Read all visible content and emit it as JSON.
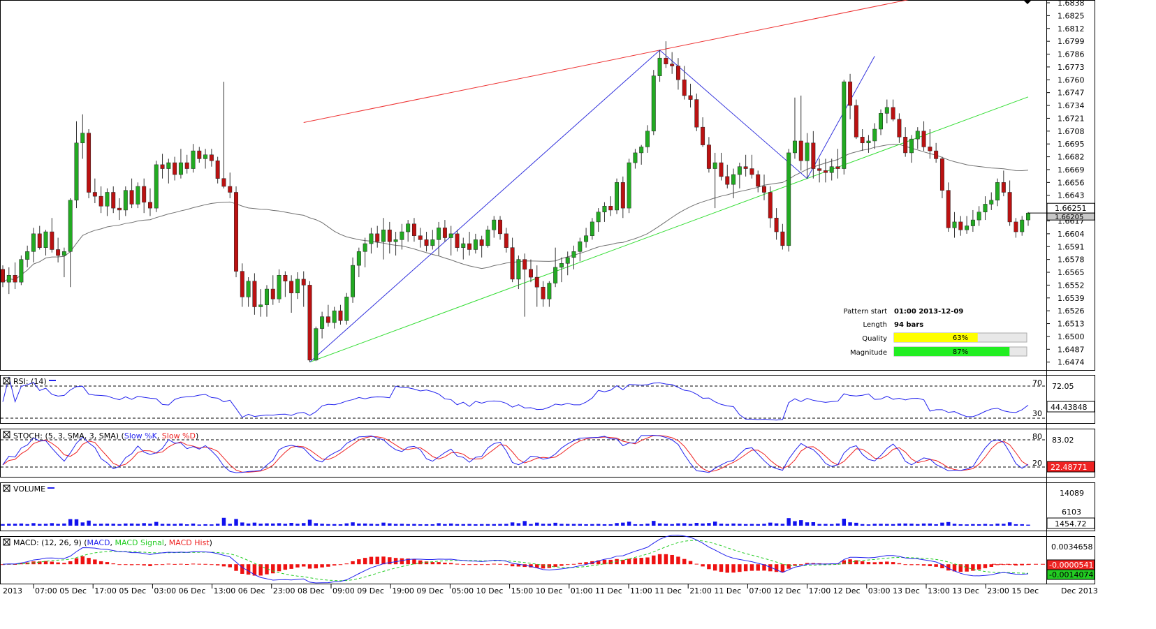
{
  "chart_data": [
    {
      "type": "candlestick",
      "panel": "price",
      "y_ticks": [
        "1.6838",
        "1.6825",
        "1.6812",
        "1.6799",
        "1.6786",
        "1.6773",
        "1.6760",
        "1.6747",
        "1.6734",
        "1.6721",
        "1.6708",
        "1.6695",
        "1.6682",
        "1.6669",
        "1.6656",
        "1.6643",
        "1.6630",
        "1.6617",
        "1.6604",
        "1.6591",
        "1.6578",
        "1.6565",
        "1.6552",
        "1.6539",
        "1.6526",
        "1.6513",
        "1.6500",
        "1.6487",
        "1.6474"
      ],
      "ylim": [
        1.6466,
        1.6838
      ],
      "last_price_label": "1.66251",
      "moving_average_label": "1.66205",
      "candles_ohlc": [
        [
          1.6568,
          1.6572,
          1.655,
          1.6555
        ],
        [
          1.6555,
          1.657,
          1.6543,
          1.6562
        ],
        [
          1.6562,
          1.6575,
          1.6548,
          1.6555
        ],
        [
          1.6555,
          1.6582,
          1.6552,
          1.6578
        ],
        [
          1.6578,
          1.6592,
          1.657,
          1.6586
        ],
        [
          1.6586,
          1.661,
          1.6575,
          1.6604
        ],
        [
          1.6604,
          1.6612,
          1.6588,
          1.659
        ],
        [
          1.659,
          1.6608,
          1.6582,
          1.6606
        ],
        [
          1.6606,
          1.662,
          1.6585,
          1.6588
        ],
        [
          1.6588,
          1.66,
          1.6575,
          1.6582
        ],
        [
          1.6582,
          1.659,
          1.656,
          1.6586
        ],
        [
          1.6586,
          1.664,
          1.655,
          1.6638
        ],
        [
          1.6638,
          1.6718,
          1.663,
          1.6696
        ],
        [
          1.6696,
          1.6725,
          1.668,
          1.6706
        ],
        [
          1.6706,
          1.671,
          1.664,
          1.6646
        ],
        [
          1.6646,
          1.666,
          1.6635,
          1.6642
        ],
        [
          1.6642,
          1.6652,
          1.6625,
          1.6632
        ],
        [
          1.6632,
          1.665,
          1.6622,
          1.6646
        ],
        [
          1.6646,
          1.6652,
          1.6625,
          1.663
        ],
        [
          1.663,
          1.664,
          1.6618,
          1.6628
        ],
        [
          1.6628,
          1.6652,
          1.6622,
          1.6648
        ],
        [
          1.6648,
          1.666,
          1.663,
          1.6634
        ],
        [
          1.6634,
          1.6656,
          1.663,
          1.6652
        ],
        [
          1.6652,
          1.666,
          1.6625,
          1.6636
        ],
        [
          1.6636,
          1.665,
          1.6622,
          1.663
        ],
        [
          1.663,
          1.6678,
          1.6626,
          1.6674
        ],
        [
          1.6674,
          1.6685,
          1.666,
          1.667
        ],
        [
          1.667,
          1.668,
          1.6655,
          1.6676
        ],
        [
          1.6676,
          1.6682,
          1.6658,
          1.6664
        ],
        [
          1.6664,
          1.669,
          1.666,
          1.6676
        ],
        [
          1.6676,
          1.6684,
          1.6665,
          1.667
        ],
        [
          1.667,
          1.6695,
          1.6666,
          1.6688
        ],
        [
          1.6688,
          1.6692,
          1.6676,
          1.668
        ],
        [
          1.668,
          1.669,
          1.667,
          1.6684
        ],
        [
          1.6684,
          1.669,
          1.6672,
          1.6678
        ],
        [
          1.6678,
          1.6682,
          1.6655,
          1.666
        ],
        [
          1.666,
          1.6758,
          1.665,
          1.6652
        ],
        [
          1.6652,
          1.6666,
          1.664,
          1.6646
        ],
        [
          1.6646,
          1.6652,
          1.656,
          1.6566
        ],
        [
          1.6566,
          1.6574,
          1.653,
          1.654
        ],
        [
          1.654,
          1.656,
          1.653,
          1.6556
        ],
        [
          1.6556,
          1.6564,
          1.6522,
          1.653
        ],
        [
          1.653,
          1.6548,
          1.652,
          1.6532
        ],
        [
          1.6532,
          1.6552,
          1.652,
          1.6548
        ],
        [
          1.6548,
          1.6562,
          1.6532,
          1.6538
        ],
        [
          1.6538,
          1.6568,
          1.6534,
          1.6562
        ],
        [
          1.6562,
          1.6566,
          1.654,
          1.6556
        ],
        [
          1.6556,
          1.6562,
          1.6524,
          1.6544
        ],
        [
          1.6544,
          1.6565,
          1.6538,
          1.6558
        ],
        [
          1.6558,
          1.6566,
          1.653,
          1.6552
        ],
        [
          1.6552,
          1.6556,
          1.6474,
          1.6476
        ],
        [
          1.6476,
          1.651,
          1.6475,
          1.6508
        ],
        [
          1.6508,
          1.6525,
          1.6498,
          1.652
        ],
        [
          1.652,
          1.6532,
          1.651,
          1.6514
        ],
        [
          1.6514,
          1.653,
          1.6508,
          1.6526
        ],
        [
          1.6526,
          1.6532,
          1.6512,
          1.6516
        ],
        [
          1.6516,
          1.6544,
          1.6512,
          1.654
        ],
        [
          1.654,
          1.658,
          1.6534,
          1.6572
        ],
        [
          1.6572,
          1.659,
          1.656,
          1.6586
        ],
        [
          1.6586,
          1.66,
          1.657,
          1.6594
        ],
        [
          1.6594,
          1.661,
          1.6584,
          1.6604
        ],
        [
          1.6604,
          1.6612,
          1.659,
          1.6596
        ],
        [
          1.6596,
          1.662,
          1.6578,
          1.6608
        ],
        [
          1.6608,
          1.6616,
          1.6584,
          1.6596
        ],
        [
          1.6596,
          1.6606,
          1.6582,
          1.6598
        ],
        [
          1.6598,
          1.6614,
          1.6588,
          1.6606
        ],
        [
          1.6606,
          1.6618,
          1.6596,
          1.6614
        ],
        [
          1.6614,
          1.662,
          1.6596,
          1.6602
        ],
        [
          1.6602,
          1.661,
          1.659,
          1.6598
        ],
        [
          1.6598,
          1.6606,
          1.6586,
          1.6592
        ],
        [
          1.6592,
          1.6608,
          1.6588,
          1.6598
        ],
        [
          1.6598,
          1.6616,
          1.6582,
          1.661
        ],
        [
          1.661,
          1.6618,
          1.6596,
          1.66
        ],
        [
          1.66,
          1.6612,
          1.6582,
          1.6604
        ],
        [
          1.6604,
          1.6608,
          1.6586,
          1.659
        ],
        [
          1.659,
          1.66,
          1.6578,
          1.6594
        ],
        [
          1.6594,
          1.6606,
          1.6582,
          1.6588
        ],
        [
          1.6588,
          1.6604,
          1.6584,
          1.6598
        ],
        [
          1.6598,
          1.6602,
          1.658,
          1.6592
        ],
        [
          1.6592,
          1.6612,
          1.659,
          1.6608
        ],
        [
          1.6608,
          1.6622,
          1.66,
          1.6618
        ],
        [
          1.6618,
          1.6622,
          1.6598,
          1.6604
        ],
        [
          1.6604,
          1.661,
          1.6585,
          1.659
        ],
        [
          1.659,
          1.66,
          1.6555,
          1.6558
        ],
        [
          1.6558,
          1.6582,
          1.6548,
          1.6578
        ],
        [
          1.6578,
          1.6584,
          1.652,
          1.6568
        ],
        [
          1.6568,
          1.6578,
          1.6555,
          1.656
        ],
        [
          1.656,
          1.6572,
          1.653,
          1.655
        ],
        [
          1.655,
          1.6556,
          1.653,
          1.6538
        ],
        [
          1.6538,
          1.6556,
          1.653,
          1.6554
        ],
        [
          1.6554,
          1.659,
          1.655,
          1.657
        ],
        [
          1.657,
          1.658,
          1.6555,
          1.6574
        ],
        [
          1.6574,
          1.6586,
          1.6562,
          1.658
        ],
        [
          1.658,
          1.6592,
          1.6568,
          1.6586
        ],
        [
          1.6586,
          1.66,
          1.6576,
          1.6596
        ],
        [
          1.6596,
          1.661,
          1.659,
          1.6602
        ],
        [
          1.6602,
          1.662,
          1.6598,
          1.6616
        ],
        [
          1.6616,
          1.663,
          1.6606,
          1.6626
        ],
        [
          1.6626,
          1.6636,
          1.6616,
          1.6632
        ],
        [
          1.6632,
          1.6642,
          1.6622,
          1.6628
        ],
        [
          1.6628,
          1.666,
          1.6624,
          1.6656
        ],
        [
          1.6656,
          1.6662,
          1.662,
          1.663
        ],
        [
          1.663,
          1.668,
          1.6625,
          1.6676
        ],
        [
          1.6676,
          1.669,
          1.667,
          1.6686
        ],
        [
          1.6686,
          1.6694,
          1.6674,
          1.6692
        ],
        [
          1.6692,
          1.6714,
          1.6686,
          1.6708
        ],
        [
          1.6708,
          1.677,
          1.6704,
          1.6764
        ],
        [
          1.6764,
          1.679,
          1.6758,
          1.6782
        ],
        [
          1.6782,
          1.6799,
          1.6772,
          1.6776
        ],
        [
          1.6776,
          1.6788,
          1.6766,
          1.6774
        ],
        [
          1.6774,
          1.6782,
          1.675,
          1.676
        ],
        [
          1.676,
          1.6774,
          1.674,
          1.6744
        ],
        [
          1.6744,
          1.6756,
          1.6732,
          1.674
        ],
        [
          1.674,
          1.6746,
          1.6708,
          1.6712
        ],
        [
          1.6712,
          1.6722,
          1.6692,
          1.6694
        ],
        [
          1.6694,
          1.6702,
          1.6666,
          1.667
        ],
        [
          1.667,
          1.6686,
          1.663,
          1.6676
        ],
        [
          1.6676,
          1.6686,
          1.6658,
          1.6662
        ],
        [
          1.6662,
          1.6674,
          1.665,
          1.6654
        ],
        [
          1.6654,
          1.667,
          1.664,
          1.6664
        ],
        [
          1.6664,
          1.6676,
          1.665,
          1.6672
        ],
        [
          1.6672,
          1.6684,
          1.6662,
          1.667
        ],
        [
          1.667,
          1.6684,
          1.666,
          1.6664
        ],
        [
          1.6664,
          1.6668,
          1.6646,
          1.6652
        ],
        [
          1.6652,
          1.6664,
          1.6638,
          1.6646
        ],
        [
          1.6646,
          1.6652,
          1.661,
          1.662
        ],
        [
          1.662,
          1.663,
          1.6598,
          1.6606
        ],
        [
          1.6606,
          1.6614,
          1.6588,
          1.6592
        ],
        [
          1.6592,
          1.669,
          1.6586,
          1.6686
        ],
        [
          1.6686,
          1.6742,
          1.668,
          1.6698
        ],
        [
          1.6698,
          1.6744,
          1.6668,
          1.6678
        ],
        [
          1.6678,
          1.6706,
          1.666,
          1.6696
        ],
        [
          1.6696,
          1.6708,
          1.666,
          1.667
        ],
        [
          1.667,
          1.668,
          1.6656,
          1.6668
        ],
        [
          1.6668,
          1.668,
          1.6656,
          1.6666
        ],
        [
          1.6666,
          1.668,
          1.6658,
          1.6672
        ],
        [
          1.6672,
          1.669,
          1.666,
          1.667
        ],
        [
          1.667,
          1.676,
          1.6664,
          1.6758
        ],
        [
          1.6758,
          1.6766,
          1.672,
          1.6734
        ],
        [
          1.6734,
          1.674,
          1.67,
          1.6702
        ],
        [
          1.6702,
          1.671,
          1.6688,
          1.6696
        ],
        [
          1.6696,
          1.6704,
          1.6686,
          1.6698
        ],
        [
          1.6698,
          1.6716,
          1.669,
          1.671
        ],
        [
          1.671,
          1.673,
          1.6704,
          1.6726
        ],
        [
          1.6726,
          1.674,
          1.6716,
          1.6732
        ],
        [
          1.6732,
          1.674,
          1.6718,
          1.672
        ],
        [
          1.672,
          1.6726,
          1.6696,
          1.6702
        ],
        [
          1.6702,
          1.6712,
          1.6682,
          1.6686
        ],
        [
          1.6686,
          1.6704,
          1.6676,
          1.67
        ],
        [
          1.67,
          1.6712,
          1.669,
          1.6708
        ],
        [
          1.6708,
          1.6718,
          1.6688,
          1.6692
        ],
        [
          1.6692,
          1.671,
          1.668,
          1.6688
        ],
        [
          1.6688,
          1.6696,
          1.6676,
          1.668
        ],
        [
          1.668,
          1.6682,
          1.664,
          1.6648
        ],
        [
          1.6648,
          1.6656,
          1.6606,
          1.661
        ],
        [
          1.661,
          1.6626,
          1.66,
          1.6616
        ],
        [
          1.6616,
          1.6622,
          1.6602,
          1.6608
        ],
        [
          1.6608,
          1.6622,
          1.6604,
          1.6612
        ],
        [
          1.6612,
          1.6628,
          1.6606,
          1.6618
        ],
        [
          1.6618,
          1.6632,
          1.6612,
          1.6626
        ],
        [
          1.6626,
          1.6642,
          1.6618,
          1.6634
        ],
        [
          1.6634,
          1.6646,
          1.6628,
          1.6638
        ],
        [
          1.6638,
          1.666,
          1.6632,
          1.6656
        ],
        [
          1.6656,
          1.6668,
          1.6642,
          1.6646
        ],
        [
          1.6646,
          1.6658,
          1.6612,
          1.6616
        ],
        [
          1.6616,
          1.662,
          1.66,
          1.6606
        ],
        [
          1.6606,
          1.6622,
          1.6602,
          1.6618
        ],
        [
          1.6618,
          1.6626,
          1.6612,
          1.6625
        ]
      ],
      "annotations": {
        "pattern_start_label": "Pattern start",
        "pattern_start_value": "01:00 2013-12-09",
        "length_label": "Length",
        "length_value": "94 bars",
        "quality_label": "Quality",
        "quality_value": "63%",
        "quality_fraction": 0.63,
        "magnitude_label": "Magnitude",
        "magnitude_value": "87%",
        "magnitude_fraction": 0.87
      }
    },
    {
      "type": "line",
      "panel": "rsi",
      "title": "RSI: (14)",
      "levels": [
        "70",
        "30"
      ],
      "right_labels": [
        "72.05"
      ],
      "current_value_label": "44.43848",
      "ylim": [
        20,
        85
      ]
    },
    {
      "type": "line",
      "panel": "stochastic",
      "title_prefix": "STOCH: (5, 3, SMA, 3, SMA)",
      "series": [
        {
          "name": "Slow %K",
          "color": "#2222ee"
        },
        {
          "name": "Slow %D",
          "color": "#ee2222"
        }
      ],
      "levels": [
        "80",
        "20"
      ],
      "right_labels": [
        "83.02"
      ],
      "current_value_label": "22.48771",
      "ylim": [
        0,
        100
      ]
    },
    {
      "type": "bar",
      "panel": "volume",
      "title": "VOLUME",
      "right_labels": [
        "14089",
        "6103"
      ],
      "current_value_label": "1454.72",
      "ylim": [
        0,
        16500
      ]
    },
    {
      "type": "bar",
      "panel": "macd",
      "title_prefix": "MACD: (12, 26, 9)",
      "series": [
        {
          "name": "MACD",
          "color": "#2222ee"
        },
        {
          "name": "MACD Signal",
          "color": "#22cc22"
        },
        {
          "name": "MACD Hist",
          "color": "#ee2222"
        }
      ],
      "right_labels": [
        "0.0034658"
      ],
      "macd_value_label": "-0.0000541",
      "signal_value_label": "-0.0014074",
      "ylim": [
        -0.0032,
        0.0044
      ]
    }
  ],
  "x_axis": {
    "labels": [
      "2013",
      "07:00 05 Dec",
      "17:00 05 Dec",
      "03:00 06 Dec",
      "13:00 06 Dec",
      "23:00 08 Dec",
      "09:00 09 Dec",
      "19:00 09 Dec",
      "05:00 10 Dec",
      "15:00 10 Dec",
      "01:00 11 Dec",
      "11:00 11 Dec",
      "21:00 11 Dec",
      "07:00 12 Dec",
      "17:00 12 Dec",
      "03:00 13 Dec",
      "13:00 13 Dec",
      "23:00 15 Dec",
      "Dec 2013"
    ]
  },
  "colors": {
    "bull": "#22aa22",
    "bear": "#bb1111",
    "resistance": "#ee3333",
    "support": "#33dd33",
    "zigzag": "#3333dd",
    "moving_average": "#707070",
    "quality_bar": "#ffff00",
    "magnitude_bar": "#22ee22"
  }
}
